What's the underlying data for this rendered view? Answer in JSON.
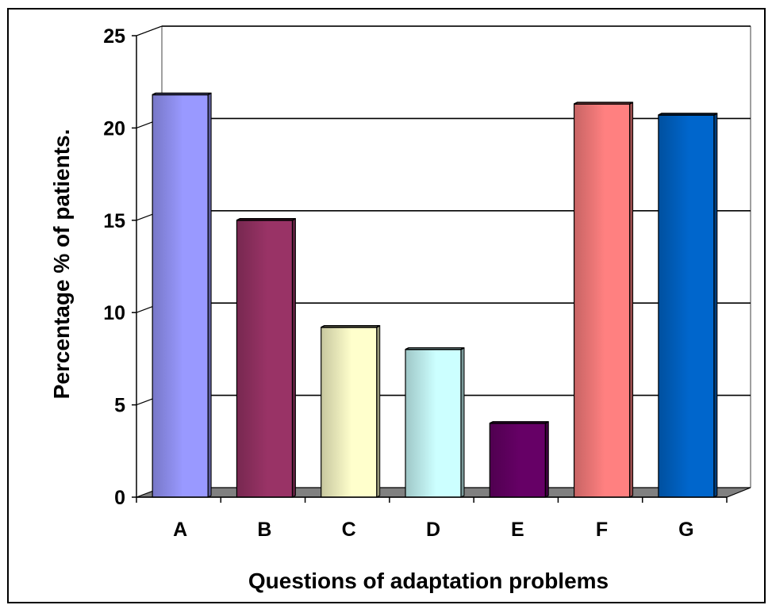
{
  "chart_data": {
    "type": "bar",
    "style": "3d-column",
    "categories": [
      "A",
      "B",
      "C",
      "D",
      "E",
      "F",
      "G"
    ],
    "values": [
      21.8,
      15.0,
      9.2,
      8.0,
      4.0,
      21.3,
      20.7
    ],
    "colors": [
      "#9999ff",
      "#993366",
      "#ffffcc",
      "#ccffff",
      "#660066",
      "#ff8080",
      "#0066cc"
    ],
    "title": "",
    "xlabel": "Questions of adaptation problems",
    "ylabel": "Percentage % of patients.",
    "ylim": [
      0,
      25
    ],
    "yticks": [
      "0",
      "5",
      "10",
      "15",
      "20",
      "25"
    ],
    "grid": true,
    "legend": "none"
  }
}
